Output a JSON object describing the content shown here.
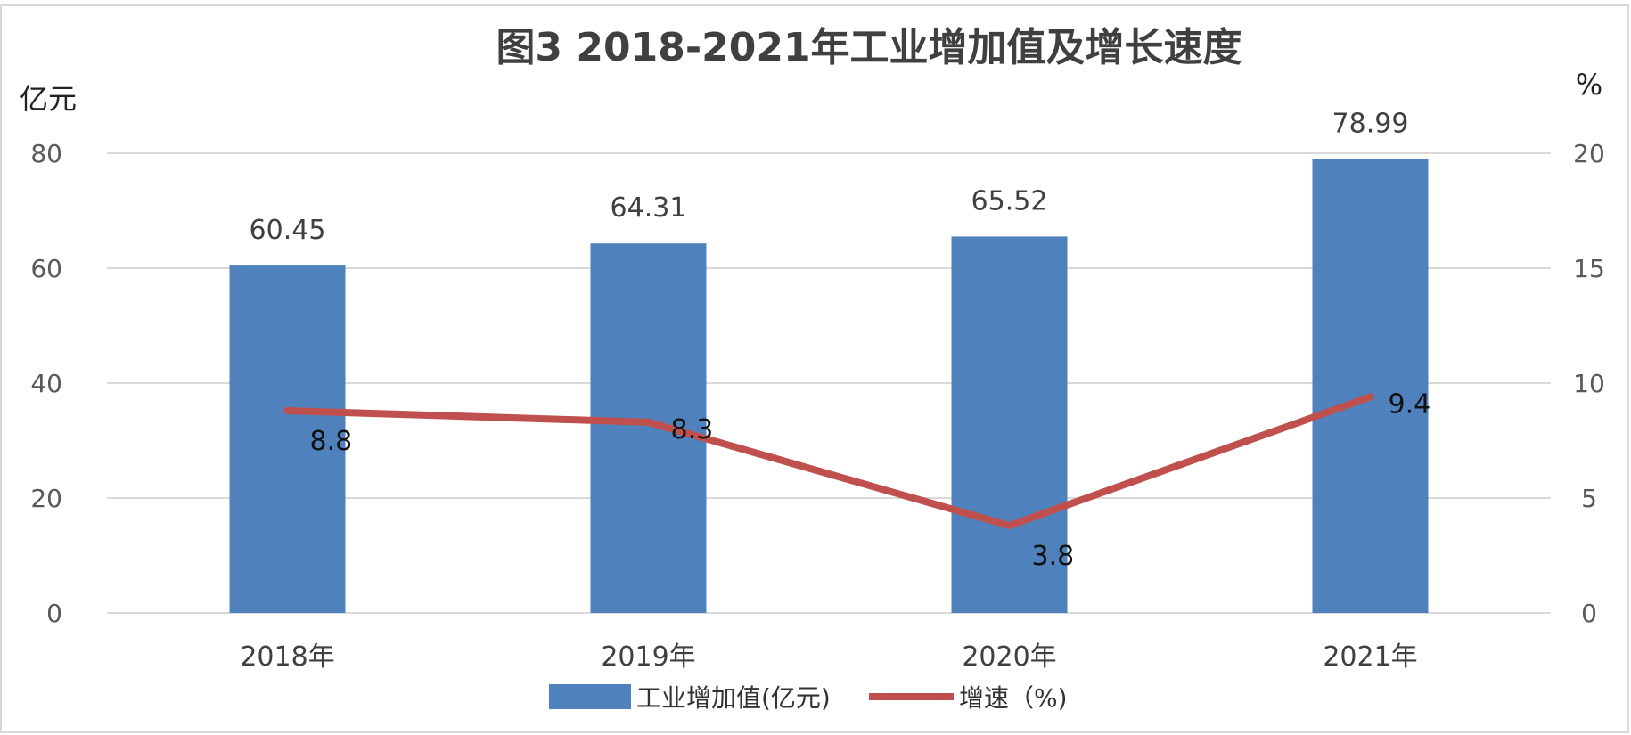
{
  "chart_data": {
    "type": "bar+line",
    "title": "图3 2018-2021年工业增加值及增长速度",
    "ylabel_left": "亿元",
    "ylabel_right": "%",
    "categories": [
      "2018年",
      "2019年",
      "2020年",
      "2021年"
    ],
    "y_left": {
      "min": 0,
      "max": 80,
      "ticks": [
        "0",
        "20",
        "40",
        "60",
        "80"
      ]
    },
    "y_right": {
      "min": 0,
      "max": 20,
      "ticks": [
        "0",
        "5",
        "10",
        "15",
        "20"
      ]
    },
    "grid": true,
    "legend_position": "bottom",
    "series": [
      {
        "name": "工业增加值(亿元)",
        "type": "bar",
        "axis": "left",
        "color": "#4F81BD",
        "values": [
          60.45,
          64.31,
          65.52,
          78.99
        ],
        "labels": [
          "60.45",
          "64.31",
          "65.52",
          "78.99"
        ]
      },
      {
        "name": "增速（%)",
        "type": "line",
        "axis": "right",
        "color": "#C0504D",
        "values": [
          8.8,
          8.3,
          3.8,
          9.4
        ],
        "labels": [
          "8.8",
          "8.3",
          "3.8",
          "9.4"
        ]
      }
    ]
  }
}
